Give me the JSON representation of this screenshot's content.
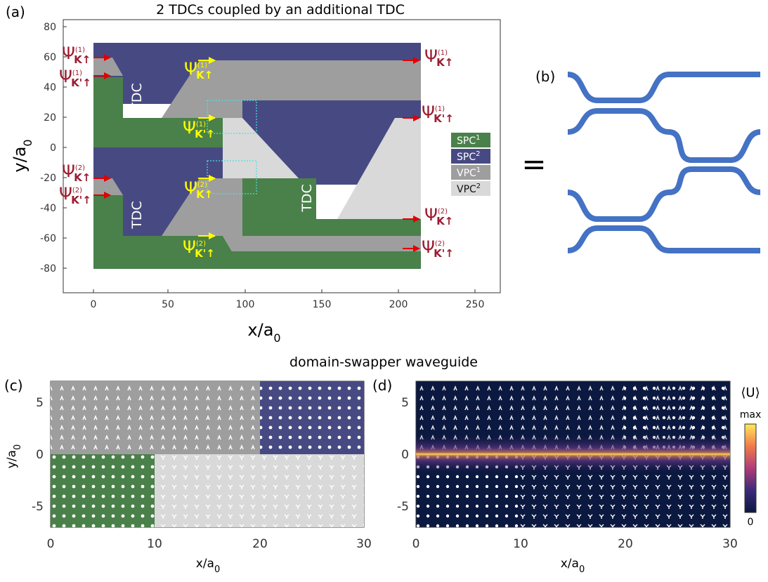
{
  "panels": {
    "a": {
      "label": "(a)",
      "title": "2 TDCs coupled by an additional TDC",
      "xlabel": "x/a",
      "xlabel_sub": "0",
      "ylabel": "y/a",
      "ylabel_sub": "0",
      "xticks": [
        "0",
        "50",
        "100",
        "150",
        "200",
        "250"
      ],
      "yticks": [
        "80",
        "60",
        "40",
        "20",
        "0",
        "-20",
        "-40",
        "-60",
        "-80"
      ],
      "tdc_label": "TDC",
      "legend": [
        {
          "name": "SPC",
          "sup": "1",
          "color": "#4a8049"
        },
        {
          "name": "SPC",
          "sup": "2",
          "color": "#474a82"
        },
        {
          "name": "VPC",
          "sup": "1",
          "color": "#9e9e9e"
        },
        {
          "name": "VPC",
          "sup": "2",
          "color": "#d9d9d9"
        }
      ],
      "psi": {
        "symbol": "Ψ",
        "K_up": "K↑",
        "Kp_up": "K'↑",
        "sup1": "(1)",
        "sup2": "(2)"
      }
    },
    "b": {
      "label": "(b)",
      "equals": "="
    },
    "c": {
      "label": "(c)",
      "xlabel": "x/a",
      "xlabel_sub": "0",
      "ylabel": "y/a",
      "ylabel_sub": "0",
      "xticks": [
        "0",
        "10",
        "20",
        "30"
      ],
      "yticks": [
        "5",
        "0",
        "-5"
      ]
    },
    "d": {
      "label": "(d)",
      "xlabel": "x/a",
      "xlabel_sub": "0",
      "xticks": [
        "0",
        "10",
        "20",
        "30"
      ],
      "yticks": [
        "5",
        "0",
        "-5"
      ],
      "colorbar_title": "⟨U⟩",
      "colorbar_max": "max",
      "colorbar_min": "0"
    },
    "section_title": "domain-swapper waveguide"
  },
  "colors": {
    "spc1": "#4a8049",
    "spc2": "#474a82",
    "vpc1": "#9e9e9e",
    "vpc2": "#d9d9d9",
    "psi_label": "#9b1b30",
    "psi_inner": "#ffff00",
    "arrow_red": "#e00000",
    "waveguide": "#4472c4"
  }
}
